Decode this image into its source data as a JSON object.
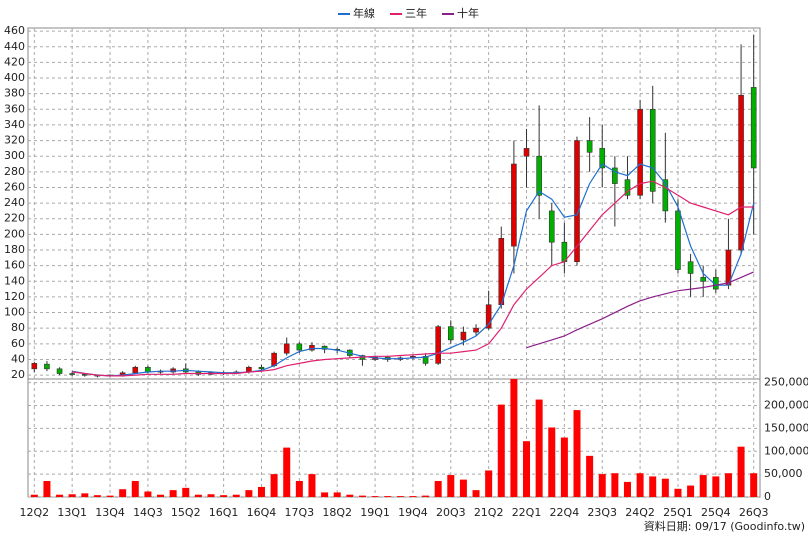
{
  "chart_data": [
    {
      "type": "candlestick",
      "legend_position": "top",
      "grid": true,
      "categories": [
        "12Q2",
        null,
        null,
        "13Q1",
        null,
        null,
        "13Q4",
        null,
        null,
        "14Q3",
        null,
        null,
        "15Q2",
        null,
        null,
        "16Q1",
        null,
        null,
        "16Q4",
        null,
        null,
        "17Q3",
        null,
        null,
        "18Q2",
        null,
        null,
        "19Q1",
        null,
        null,
        "19Q4",
        null,
        null,
        "20Q3",
        null,
        null,
        "21Q2",
        null,
        null,
        "22Q1",
        null,
        null,
        "22Q4",
        null,
        null,
        "23Q3",
        null,
        null,
        "24Q2",
        null,
        null,
        "25Q1",
        null,
        null,
        "25Q4",
        null,
        null,
        "26Q3"
      ],
      "open": [
        28,
        34,
        28,
        22,
        21,
        20,
        19,
        19,
        23,
        30,
        24,
        24,
        28,
        24,
        21,
        23,
        22,
        24,
        30,
        32,
        48,
        60,
        52,
        57,
        53,
        52,
        45,
        40,
        43,
        40,
        42,
        44,
        35,
        82,
        65,
        75,
        80,
        110,
        185,
        300,
        300,
        230,
        190,
        165,
        320,
        310,
        285,
        270,
        250,
        360,
        270,
        230,
        165,
        145,
        145,
        135,
        180,
        388
      ],
      "high": [
        37,
        38,
        30,
        24,
        22,
        21,
        21,
        25,
        32,
        32,
        27,
        30,
        35,
        26,
        25,
        25,
        26,
        32,
        33,
        50,
        68,
        62,
        62,
        58,
        55,
        53,
        46,
        45,
        45,
        44,
        46,
        48,
        84,
        90,
        82,
        85,
        128,
        210,
        320,
        335,
        365,
        240,
        215,
        325,
        350,
        340,
        300,
        300,
        372,
        390,
        330,
        245,
        175,
        160,
        155,
        220,
        443,
        455
      ],
      "low": [
        24,
        25,
        20,
        19,
        18,
        17,
        18,
        18,
        22,
        22,
        22,
        22,
        22,
        19,
        20,
        20,
        21,
        22,
        26,
        30,
        45,
        48,
        50,
        48,
        48,
        42,
        32,
        38,
        37,
        38,
        40,
        32,
        33,
        60,
        58,
        70,
        78,
        105,
        150,
        260,
        220,
        160,
        150,
        160,
        280,
        260,
        210,
        245,
        245,
        240,
        215,
        150,
        120,
        120,
        125,
        130,
        175,
        200
      ],
      "close": [
        35,
        28,
        22,
        21,
        20,
        19,
        20,
        23,
        30,
        24,
        25,
        28,
        24,
        21,
        23,
        22,
        24,
        30,
        28,
        48,
        60,
        52,
        58,
        53,
        52,
        45,
        40,
        43,
        40,
        42,
        44,
        35,
        82,
        65,
        75,
        80,
        110,
        195,
        290,
        310,
        250,
        190,
        165,
        320,
        305,
        285,
        265,
        250,
        360,
        255,
        230,
        155,
        150,
        140,
        130,
        180,
        378,
        285
      ],
      "up_color": "#e00000",
      "down_color": "#00b000",
      "series": [
        {
          "name": "年線",
          "color": "#1f6fd0",
          "values": [
            null,
            null,
            null,
            25,
            22,
            20,
            19,
            20,
            22,
            24,
            25,
            25,
            26,
            25,
            24,
            23,
            23,
            24,
            26,
            32,
            42,
            50,
            54,
            54,
            52,
            48,
            44,
            42,
            41,
            41,
            42,
            43,
            48,
            55,
            62,
            70,
            85,
            110,
            160,
            230,
            255,
            245,
            222,
            225,
            265,
            290,
            280,
            275,
            290,
            285,
            265,
            235,
            185,
            150,
            135,
            135,
            175,
            240
          ]
        },
        {
          "name": "三年",
          "color": "#e0206f",
          "values": [
            null,
            null,
            null,
            24,
            22,
            20,
            19,
            19,
            20,
            21,
            21,
            21,
            22,
            22,
            22,
            22,
            22,
            24,
            25,
            27,
            32,
            35,
            38,
            40,
            41,
            42,
            43,
            44,
            44,
            45,
            46,
            47,
            48,
            48,
            50,
            52,
            60,
            80,
            110,
            130,
            145,
            160,
            165,
            185,
            205,
            225,
            240,
            255,
            265,
            268,
            260,
            250,
            240,
            235,
            230,
            225,
            235,
            235
          ]
        },
        {
          "name": "十年",
          "color": "#8b1f8b",
          "values": [
            null,
            null,
            null,
            null,
            null,
            null,
            null,
            null,
            null,
            null,
            null,
            null,
            null,
            null,
            null,
            null,
            null,
            null,
            null,
            null,
            null,
            null,
            null,
            null,
            null,
            null,
            null,
            null,
            null,
            null,
            null,
            null,
            null,
            null,
            null,
            null,
            null,
            null,
            null,
            55,
            60,
            65,
            70,
            78,
            85,
            92,
            100,
            108,
            115,
            120,
            124,
            128,
            130,
            132,
            135,
            138,
            145,
            152
          ]
        }
      ],
      "ylim": [
        15,
        464
      ],
      "yticks": [
        20,
        40,
        60,
        80,
        100,
        120,
        140,
        160,
        180,
        200,
        220,
        240,
        260,
        280,
        300,
        320,
        340,
        360,
        380,
        400,
        420,
        440,
        460
      ]
    },
    {
      "type": "bar",
      "color": "#ff0000",
      "grid": true,
      "values": [
        5000,
        35000,
        5000,
        6000,
        8000,
        4000,
        3000,
        17000,
        35000,
        12000,
        5000,
        15000,
        20000,
        5000,
        6000,
        4000,
        5000,
        15000,
        22000,
        50000,
        108000,
        35000,
        50000,
        10000,
        10000,
        5000,
        3000,
        2000,
        2000,
        2000,
        2000,
        3000,
        35000,
        48000,
        38000,
        15000,
        58000,
        202000,
        258000,
        122000,
        213000,
        152000,
        130000,
        190000,
        90000,
        50000,
        52000,
        33000,
        52000,
        45000,
        40000,
        18000,
        25000,
        48000,
        45000,
        52000,
        110000,
        52000
      ],
      "ylim": [
        0,
        258000
      ],
      "yticks": [
        0,
        {
          "value": 50000,
          "label": "50,000"
        },
        {
          "value": 100000,
          "label": "100,000"
        },
        {
          "value": 150000,
          "label": "150,000"
        },
        {
          "value": 200000,
          "label": "200,000"
        },
        {
          "value": 250000,
          "label": "250,000"
        }
      ],
      "footnote": "資料日期: 09/17 (Goodinfo.tw)"
    }
  ]
}
